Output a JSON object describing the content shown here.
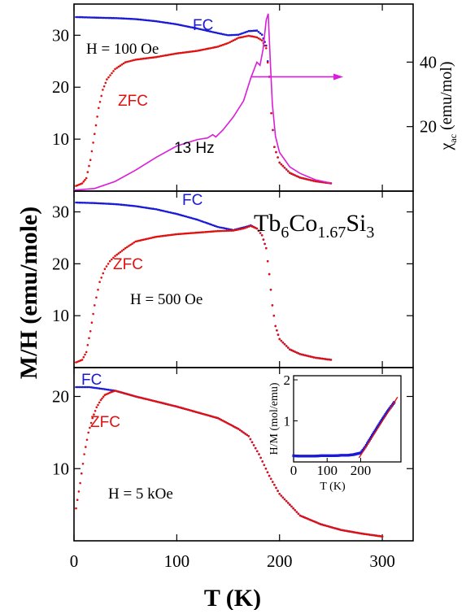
{
  "chart_data": {
    "type": "scatter",
    "x_label": "T (K)",
    "y_label": "M/H (emu/mole)",
    "compound": {
      "base": "Tb",
      "sub1": "6",
      "mid": "Co",
      "sub2": "1.67",
      "end": "Si",
      "sub3": "3"
    },
    "xlim": [
      0,
      330
    ],
    "x_ticks": [
      0,
      100,
      200,
      300
    ],
    "colors": {
      "fc": "#1a1ad6",
      "zfc": "#e01010",
      "ac": "#d81ed8",
      "fit": "#e01010"
    },
    "panels": [
      {
        "field_label": "H = 100 Oe",
        "ylim": [
          0,
          36
        ],
        "y_ticks": [
          10,
          20,
          30
        ],
        "fc_label": "FC",
        "zfc_label": "ZFC",
        "ac_label": "13 Hz",
        "right_axis": {
          "label_main": "χ",
          "label_sub": "ac",
          "label_rest": " (emu/mol)",
          "ylim": [
            0,
            58
          ],
          "ticks": [
            20,
            40
          ]
        },
        "series": [
          {
            "name": "FC",
            "color_key": "fc",
            "points": [
              [
                2,
                33.5
              ],
              [
                20,
                33.4
              ],
              [
                40,
                33.3
              ],
              [
                60,
                33.1
              ],
              [
                80,
                32.7
              ],
              [
                100,
                32.1
              ],
              [
                120,
                31.3
              ],
              [
                140,
                30.4
              ],
              [
                150,
                30.0
              ],
              [
                160,
                30.1
              ],
              [
                170,
                30.8
              ],
              [
                178,
                30.9
              ],
              [
                183,
                30.1
              ],
              [
                187,
                28.0
              ],
              [
                190,
                22
              ],
              [
                192,
                15
              ],
              [
                195,
                8.5
              ],
              [
                200,
                5.5
              ],
              [
                210,
                3.5
              ],
              [
                220,
                2.6
              ],
              [
                235,
                1.9
              ],
              [
                250,
                1.5
              ]
            ]
          },
          {
            "name": "ZFC",
            "color_key": "zfc",
            "points": [
              [
                2,
                1.0
              ],
              [
                8,
                1.5
              ],
              [
                12,
                2.5
              ],
              [
                16,
                6
              ],
              [
                20,
                11
              ],
              [
                24,
                16
              ],
              [
                28,
                19.5
              ],
              [
                32,
                21.5
              ],
              [
                40,
                23.5
              ],
              [
                50,
                24.8
              ],
              [
                60,
                25.3
              ],
              [
                80,
                25.8
              ],
              [
                100,
                26.5
              ],
              [
                120,
                27.0
              ],
              [
                140,
                27.8
              ],
              [
                150,
                28.5
              ],
              [
                160,
                29.5
              ],
              [
                170,
                29.9
              ],
              [
                178,
                29.6
              ],
              [
                183,
                29.0
              ],
              [
                187,
                27.5
              ],
              [
                190,
                22
              ],
              [
                192,
                15
              ],
              [
                195,
                8.5
              ],
              [
                200,
                5.5
              ],
              [
                210,
                3.5
              ],
              [
                220,
                2.6
              ],
              [
                235,
                1.9
              ],
              [
                250,
                1.5
              ]
            ]
          },
          {
            "name": "13 Hz",
            "color_key": "ac",
            "points": [
              [
                0,
                0.3
              ],
              [
                20,
                0.8
              ],
              [
                40,
                3
              ],
              [
                60,
                6.5
              ],
              [
                80,
                10.5
              ],
              [
                100,
                14
              ],
              [
                120,
                16
              ],
              [
                130,
                16.5
              ],
              [
                135,
                17.5
              ],
              [
                138,
                16.8
              ],
              [
                145,
                19
              ],
              [
                155,
                23
              ],
              [
                165,
                28
              ],
              [
                172,
                35
              ],
              [
                178,
                40
              ],
              [
                181,
                39
              ],
              [
                184,
                44
              ],
              [
                187,
                53
              ],
              [
                189,
                55
              ],
              [
                191,
                40
              ],
              [
                193,
                27
              ],
              [
                196,
                17
              ],
              [
                200,
                12
              ],
              [
                210,
                7.5
              ],
              [
                220,
                5.5
              ],
              [
                235,
                3.5
              ],
              [
                250,
                2.5
              ]
            ]
          }
        ],
        "annotation_arrow": {
          "from": [
            172,
            22
          ],
          "to": [
            262,
            22
          ]
        }
      },
      {
        "field_label": "H = 500 Oe",
        "ylim": [
          0,
          34
        ],
        "y_ticks": [
          10,
          20,
          30
        ],
        "fc_label": "FC",
        "zfc_label": "ZFC",
        "series": [
          {
            "name": "FC",
            "color_key": "fc",
            "points": [
              [
                2,
                31.8
              ],
              [
                20,
                31.7
              ],
              [
                40,
                31.5
              ],
              [
                60,
                31.1
              ],
              [
                80,
                30.5
              ],
              [
                100,
                29.6
              ],
              [
                120,
                28.5
              ],
              [
                140,
                27.1
              ],
              [
                155,
                26.5
              ],
              [
                165,
                27.0
              ],
              [
                172,
                27.4
              ],
              [
                178,
                26.8
              ],
              [
                183,
                25.5
              ],
              [
                187,
                23
              ],
              [
                190,
                18
              ],
              [
                193,
                12
              ],
              [
                196,
                8
              ],
              [
                200,
                5.5
              ],
              [
                210,
                3.5
              ],
              [
                220,
                2.6
              ],
              [
                235,
                1.9
              ],
              [
                250,
                1.5
              ]
            ]
          },
          {
            "name": "ZFC",
            "color_key": "zfc",
            "points": [
              [
                2,
                1.0
              ],
              [
                8,
                1.5
              ],
              [
                12,
                3
              ],
              [
                16,
                7
              ],
              [
                20,
                12
              ],
              [
                25,
                16.5
              ],
              [
                30,
                19
              ],
              [
                35,
                20.5
              ],
              [
                40,
                21.5
              ],
              [
                50,
                23
              ],
              [
                60,
                24.3
              ],
              [
                80,
                25.2
              ],
              [
                100,
                25.7
              ],
              [
                120,
                26.0
              ],
              [
                140,
                26.3
              ],
              [
                155,
                26.4
              ],
              [
                165,
                26.8
              ],
              [
                172,
                27.3
              ],
              [
                178,
                26.8
              ],
              [
                183,
                25.5
              ],
              [
                187,
                23
              ],
              [
                190,
                18
              ],
              [
                193,
                12
              ],
              [
                196,
                8
              ],
              [
                200,
                5.5
              ],
              [
                210,
                3.5
              ],
              [
                220,
                2.6
              ],
              [
                235,
                1.9
              ],
              [
                250,
                1.5
              ]
            ]
          }
        ]
      },
      {
        "field_label": "H = 5 kOe",
        "ylim": [
          0,
          24
        ],
        "y_ticks": [
          10,
          20
        ],
        "fc_label": "FC",
        "zfc_label": "ZFC",
        "series": [
          {
            "name": "FC",
            "color_key": "fc",
            "points": [
              [
                2,
                21.3
              ],
              [
                15,
                21.3
              ],
              [
                30,
                21.0
              ],
              [
                40,
                20.8
              ],
              [
                60,
                20.0
              ],
              [
                80,
                19.3
              ],
              [
                100,
                18.6
              ],
              [
                120,
                17.8
              ],
              [
                140,
                17.0
              ],
              [
                160,
                15.5
              ],
              [
                170,
                14.5
              ],
              [
                180,
                12
              ],
              [
                190,
                9
              ],
              [
                200,
                6.5
              ],
              [
                210,
                5
              ],
              [
                220,
                3.5
              ],
              [
                240,
                2.3
              ],
              [
                260,
                1.5
              ],
              [
                280,
                1.0
              ],
              [
                300,
                0.6
              ]
            ]
          },
          {
            "name": "ZFC",
            "color_key": "zfc",
            "points": [
              [
                2,
                4.5
              ],
              [
                6,
                8
              ],
              [
                10,
                12
              ],
              [
                14,
                15
              ],
              [
                18,
                17
              ],
              [
                22,
                18.5
              ],
              [
                26,
                19.5
              ],
              [
                30,
                20.2
              ],
              [
                36,
                20.6
              ],
              [
                40,
                20.8
              ],
              [
                50,
                20.4
              ],
              [
                60,
                20.0
              ],
              [
                80,
                19.3
              ],
              [
                100,
                18.6
              ],
              [
                120,
                17.8
              ],
              [
                140,
                17.0
              ],
              [
                160,
                15.5
              ],
              [
                170,
                14.5
              ],
              [
                180,
                12
              ],
              [
                190,
                9
              ],
              [
                200,
                6.5
              ],
              [
                210,
                5
              ],
              [
                220,
                3.5
              ],
              [
                240,
                2.3
              ],
              [
                260,
                1.5
              ],
              [
                280,
                1.0
              ],
              [
                300,
                0.6
              ]
            ]
          }
        ],
        "inset": {
          "x_label": "T (K)",
          "y_label": "H/M (mol/emu)",
          "xlim": [
            0,
            320
          ],
          "ylim": [
            0,
            2.1
          ],
          "x_ticks": [
            0,
            100,
            200
          ],
          "y_ticks": [
            1,
            2
          ],
          "data": [
            [
              0,
              0.15
            ],
            [
              20,
              0.14
            ],
            [
              40,
              0.14
            ],
            [
              60,
              0.14
            ],
            [
              80,
              0.15
            ],
            [
              100,
              0.15
            ],
            [
              120,
              0.15
            ],
            [
              140,
              0.16
            ],
            [
              160,
              0.16
            ],
            [
              180,
              0.18
            ],
            [
              200,
              0.22
            ],
            [
              210,
              0.32
            ],
            [
              220,
              0.45
            ],
            [
              240,
              0.72
            ],
            [
              260,
              0.98
            ],
            [
              280,
              1.23
            ],
            [
              300,
              1.45
            ]
          ],
          "fit": [
            [
              195,
              0.1
            ],
            [
              310,
              1.58
            ]
          ]
        }
      }
    ]
  }
}
